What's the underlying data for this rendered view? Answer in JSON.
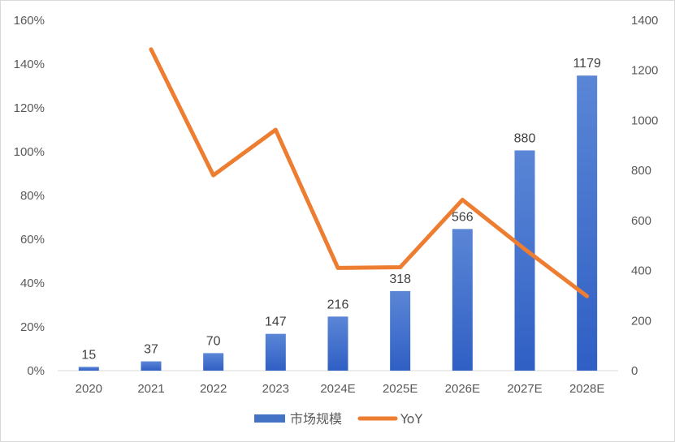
{
  "chart_data": {
    "type": "bar",
    "categories": [
      "2020",
      "2021",
      "2022",
      "2023",
      "2024E",
      "2025E",
      "2026E",
      "2027E",
      "2028E"
    ],
    "series": [
      {
        "name": "市场规模",
        "type": "bar",
        "axis": "right",
        "values": [
          15,
          37,
          70,
          147,
          216,
          318,
          566,
          880,
          1179
        ],
        "data_labels": [
          "15",
          "37",
          "70",
          "147",
          "216",
          "318",
          "566",
          "880",
          "1179"
        ],
        "color": "#4472C4"
      },
      {
        "name": "YoY",
        "type": "line",
        "axis": "left",
        "values": [
          null,
          146.7,
          89.2,
          110.0,
          46.9,
          47.2,
          78.0,
          55.5,
          34.0
        ],
        "color": "#ED7D31"
      }
    ],
    "y_left": {
      "ylim": [
        0,
        160
      ],
      "ticks": [
        "0%",
        "20%",
        "40%",
        "60%",
        "80%",
        "100%",
        "120%",
        "140%",
        "160%"
      ]
    },
    "y_right": {
      "ylim": [
        0,
        1400
      ],
      "ticks": [
        "0",
        "200",
        "400",
        "600",
        "800",
        "1000",
        "1200",
        "1400"
      ]
    },
    "grid": false,
    "legend_position": "bottom"
  }
}
